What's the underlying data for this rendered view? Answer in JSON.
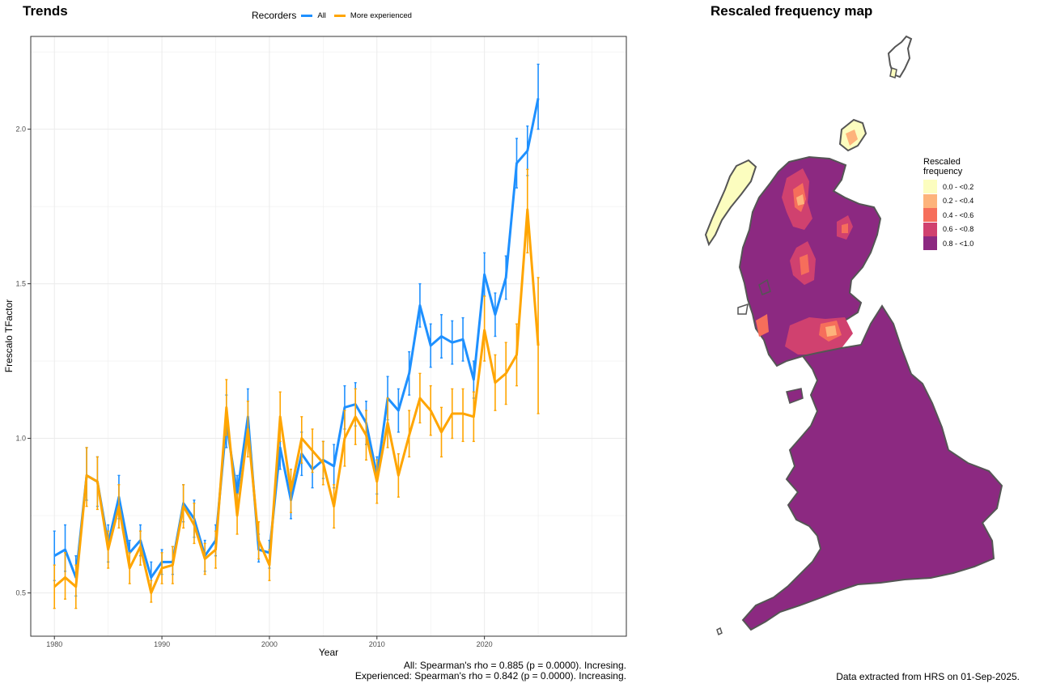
{
  "trends_title": "Trends",
  "map_title": "Rescaled frequency map",
  "legend": {
    "title": "Recorders",
    "items": [
      {
        "label": "All",
        "color": "#1E90FF"
      },
      {
        "label": "More experienced",
        "color": "#FFA500"
      }
    ]
  },
  "stats": {
    "all": "All: Spearman's rho = 0.885 (p = 0.0000). Incresing.",
    "experienced": "Experienced: Spearman's rho = 0.842 (p = 0.0000). Increasing."
  },
  "footer": "Data extracted from HRS on 01-Sep-2025.",
  "map_legend": {
    "title_line1": "Rescaled",
    "title_line2": "frequency",
    "items": [
      {
        "label": "0.0 - <0.2",
        "color": "#FCFDBF"
      },
      {
        "label": "0.2 - <0.4",
        "color": "#FDB37B"
      },
      {
        "label": "0.4 - <0.6",
        "color": "#F66E5B"
      },
      {
        "label": "0.6 - <0.8",
        "color": "#D0416F"
      },
      {
        "label": "0.8 - <1.0",
        "color": "#8C2981"
      }
    ]
  },
  "chart_data": {
    "type": "line",
    "xlabel": "Year",
    "ylabel": "Frescalo TFactor",
    "xlim": [
      1977.8,
      2033.2
    ],
    "ylim": [
      0.36,
      2.3
    ],
    "x_ticks": [
      1980,
      1990,
      2000,
      2010,
      2020
    ],
    "y_ticks": [
      0.5,
      1.0,
      1.5,
      2.0
    ],
    "y_tick_labels": [
      "0.5",
      "1.0",
      "1.5",
      "2.0"
    ],
    "grid": true,
    "legend_position": "top",
    "x": [
      1980,
      1981,
      1982,
      1983,
      1984,
      1985,
      1986,
      1987,
      1988,
      1989,
      1990,
      1991,
      1992,
      1993,
      1994,
      1995,
      1996,
      1997,
      1998,
      1999,
      2000,
      2001,
      2002,
      2003,
      2004,
      2005,
      2006,
      2007,
      2008,
      2009,
      2010,
      2011,
      2012,
      2013,
      2014,
      2015,
      2016,
      2017,
      2018,
      2019,
      2020,
      2021,
      2022,
      2023,
      2024,
      2025
    ],
    "series": [
      {
        "name": "All",
        "color": "#1E90FF",
        "values": [
          0.62,
          0.64,
          0.55,
          0.88,
          0.86,
          0.66,
          0.81,
          0.63,
          0.67,
          0.55,
          0.6,
          0.6,
          0.79,
          0.74,
          0.62,
          0.67,
          1.05,
          0.82,
          1.07,
          0.64,
          0.63,
          0.97,
          0.8,
          0.95,
          0.9,
          0.93,
          0.91,
          1.1,
          1.11,
          1.05,
          0.88,
          1.13,
          1.09,
          1.21,
          1.43,
          1.3,
          1.33,
          1.31,
          1.32,
          1.19,
          1.53,
          1.4,
          1.52,
          1.89,
          1.93,
          2.1
        ],
        "lower": [
          0.54,
          0.57,
          0.49,
          0.8,
          0.78,
          0.6,
          0.74,
          0.59,
          0.62,
          0.51,
          0.56,
          0.56,
          0.73,
          0.68,
          0.57,
          0.62,
          0.97,
          0.76,
          0.99,
          0.6,
          0.58,
          0.9,
          0.74,
          0.88,
          0.84,
          0.87,
          0.84,
          1.03,
          1.04,
          0.98,
          0.82,
          1.06,
          1.02,
          1.14,
          1.36,
          1.23,
          1.26,
          1.24,
          1.25,
          1.13,
          1.46,
          1.33,
          1.45,
          1.81,
          1.85,
          2.0
        ],
        "upper": [
          0.7,
          0.72,
          0.62,
          0.97,
          0.94,
          0.72,
          0.88,
          0.67,
          0.72,
          0.6,
          0.64,
          0.65,
          0.85,
          0.8,
          0.67,
          0.72,
          1.14,
          0.88,
          1.16,
          0.69,
          0.67,
          1.04,
          0.86,
          1.02,
          0.96,
          0.99,
          0.98,
          1.17,
          1.18,
          1.12,
          0.94,
          1.2,
          1.16,
          1.28,
          1.5,
          1.37,
          1.4,
          1.38,
          1.39,
          1.25,
          1.6,
          1.47,
          1.59,
          1.97,
          2.01,
          2.21
        ]
      },
      {
        "name": "More experienced",
        "color": "#FFA500",
        "values": [
          0.52,
          0.55,
          0.52,
          0.88,
          0.86,
          0.64,
          0.78,
          0.58,
          0.65,
          0.5,
          0.58,
          0.59,
          0.78,
          0.72,
          0.61,
          0.64,
          1.1,
          0.75,
          1.03,
          0.67,
          0.59,
          1.07,
          0.83,
          1.0,
          0.96,
          0.92,
          0.78,
          1.0,
          1.07,
          1.01,
          0.86,
          1.05,
          0.88,
          1.01,
          1.13,
          1.09,
          1.02,
          1.08,
          1.08,
          1.07,
          1.35,
          1.18,
          1.21,
          1.27,
          1.74,
          1.3
        ],
        "lower": [
          0.45,
          0.48,
          0.45,
          0.78,
          0.77,
          0.58,
          0.71,
          0.53,
          0.59,
          0.47,
          0.53,
          0.53,
          0.71,
          0.66,
          0.56,
          0.58,
          1.01,
          0.69,
          0.94,
          0.61,
          0.54,
          0.99,
          0.76,
          0.92,
          0.89,
          0.85,
          0.71,
          0.91,
          0.98,
          0.93,
          0.79,
          0.97,
          0.81,
          0.94,
          1.05,
          1.01,
          0.94,
          1.0,
          0.99,
          0.99,
          1.25,
          1.09,
          1.11,
          1.17,
          1.6,
          1.08
        ],
        "upper": [
          0.59,
          0.63,
          0.59,
          0.97,
          0.94,
          0.7,
          0.85,
          0.63,
          0.7,
          0.54,
          0.63,
          0.65,
          0.85,
          0.79,
          0.66,
          0.7,
          1.19,
          0.82,
          1.12,
          0.73,
          0.64,
          1.15,
          0.9,
          1.07,
          1.03,
          0.99,
          0.85,
          1.09,
          1.16,
          1.09,
          0.93,
          1.13,
          0.95,
          1.09,
          1.21,
          1.17,
          1.1,
          1.16,
          1.16,
          1.15,
          1.46,
          1.27,
          1.31,
          1.37,
          1.87,
          1.52
        ]
      }
    ]
  }
}
